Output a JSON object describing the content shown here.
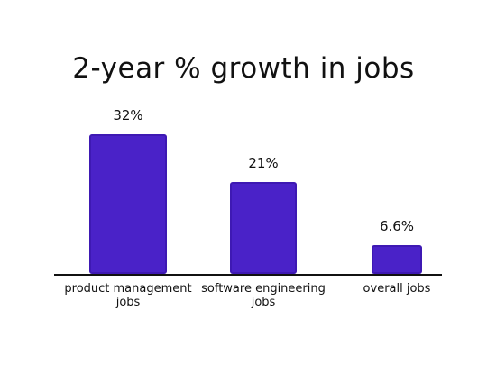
{
  "chart_data": {
    "type": "bar",
    "title": "2-year % growth in jobs",
    "categories": [
      "product management jobs",
      "software engineering jobs",
      "overall jobs"
    ],
    "values": [
      32,
      21,
      6.6
    ],
    "value_labels": [
      "32%",
      "21%",
      "6.6%"
    ],
    "color": "#4a22c8"
  }
}
